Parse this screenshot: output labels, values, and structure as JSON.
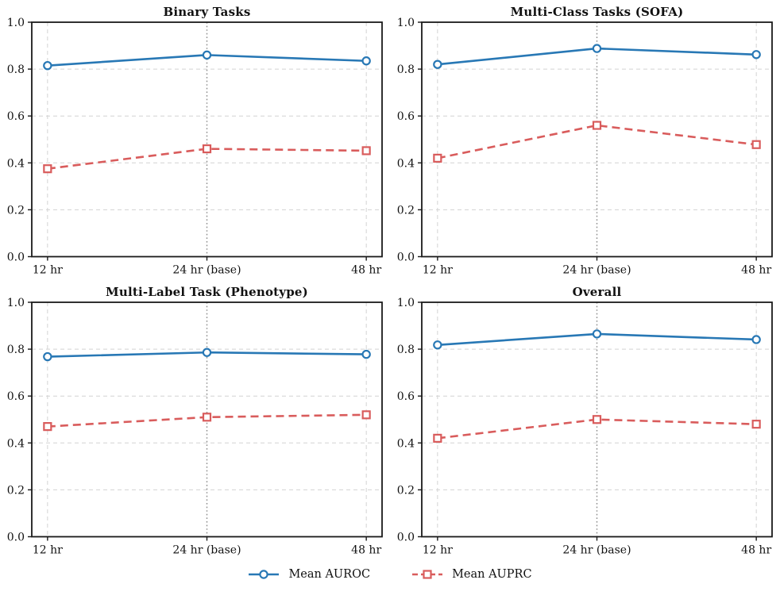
{
  "figure": {
    "colors": {
      "auroc_blue": "#2878b5",
      "auprc_red": "#d95c5c",
      "grid_gray": "#d2d2d2",
      "baseline_gray": "#8f8f8f",
      "axis_black": "#1a1a1a"
    }
  },
  "legend": {
    "items": [
      {
        "label": "Mean AUROC",
        "series_index": 0
      },
      {
        "label": "Mean AUPRC",
        "series_index": 1
      }
    ]
  },
  "chart_data": [
    {
      "type": "line",
      "title": "Binary Tasks",
      "categories": [
        "12 hr",
        "24 hr (base)",
        "48 hr"
      ],
      "base_category": "24 hr (base)",
      "ylim": [
        0.0,
        1.0
      ],
      "yticks": [
        "0.0",
        "0.2",
        "0.4",
        "0.6",
        "0.8",
        "1.0"
      ],
      "grid": true,
      "series": [
        {
          "name": "Mean AUROC",
          "color": "#2878b5",
          "style": "solid",
          "marker": "circle",
          "values": [
            0.815,
            0.86,
            0.835
          ]
        },
        {
          "name": "Mean AUPRC",
          "color": "#d95c5c",
          "style": "dashed",
          "marker": "square",
          "values": [
            0.375,
            0.46,
            0.452
          ]
        }
      ]
    },
    {
      "type": "line",
      "title": "Multi-Class Tasks (SOFA)",
      "categories": [
        "12 hr",
        "24 hr (base)",
        "48 hr"
      ],
      "base_category": "24 hr (base)",
      "ylim": [
        0.0,
        1.0
      ],
      "yticks": [
        "0.0",
        "0.2",
        "0.4",
        "0.6",
        "0.8",
        "1.0"
      ],
      "grid": true,
      "series": [
        {
          "name": "Mean AUROC",
          "color": "#2878b5",
          "style": "solid",
          "marker": "circle",
          "values": [
            0.82,
            0.888,
            0.862
          ]
        },
        {
          "name": "Mean AUPRC",
          "color": "#d95c5c",
          "style": "dashed",
          "marker": "square",
          "values": [
            0.42,
            0.56,
            0.478
          ]
        }
      ]
    },
    {
      "type": "line",
      "title": "Multi-Label Task (Phenotype)",
      "categories": [
        "12 hr",
        "24 hr (base)",
        "48 hr"
      ],
      "base_category": "24 hr (base)",
      "ylim": [
        0.0,
        1.0
      ],
      "yticks": [
        "0.0",
        "0.2",
        "0.4",
        "0.6",
        "0.8",
        "1.0"
      ],
      "grid": true,
      "series": [
        {
          "name": "Mean AUROC",
          "color": "#2878b5",
          "style": "solid",
          "marker": "circle",
          "values": [
            0.768,
            0.786,
            0.778
          ]
        },
        {
          "name": "Mean AUPRC",
          "color": "#d95c5c",
          "style": "dashed",
          "marker": "square",
          "values": [
            0.47,
            0.51,
            0.52
          ]
        }
      ]
    },
    {
      "type": "line",
      "title": "Overall",
      "categories": [
        "12 hr",
        "24 hr (base)",
        "48 hr"
      ],
      "base_category": "24 hr (base)",
      "ylim": [
        0.0,
        1.0
      ],
      "yticks": [
        "0.0",
        "0.2",
        "0.4",
        "0.6",
        "0.8",
        "1.0"
      ],
      "grid": true,
      "series": [
        {
          "name": "Mean AUROC",
          "color": "#2878b5",
          "style": "solid",
          "marker": "circle",
          "values": [
            0.818,
            0.865,
            0.841
          ]
        },
        {
          "name": "Mean AUPRC",
          "color": "#d95c5c",
          "style": "dashed",
          "marker": "square",
          "values": [
            0.42,
            0.5,
            0.48
          ]
        }
      ]
    }
  ]
}
